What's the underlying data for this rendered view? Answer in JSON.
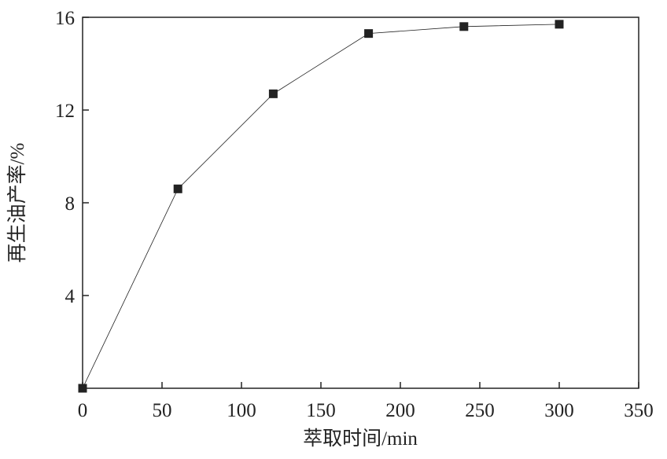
{
  "chart_data": {
    "type": "line",
    "x_label": "萃取时间/min",
    "y_label": "再生油产率/%",
    "x": [
      0,
      60,
      120,
      180,
      240,
      300
    ],
    "series": [
      {
        "values": [
          0,
          8.6,
          12.7,
          15.3,
          15.6,
          15.7
        ],
        "color": "#222222"
      }
    ],
    "xlim": [
      0,
      350
    ],
    "xticks": [
      0,
      50,
      100,
      150,
      200,
      250,
      300,
      350
    ],
    "ylim": [
      0,
      16
    ],
    "yticks": [
      4,
      8,
      12,
      16
    ],
    "grid": false
  }
}
